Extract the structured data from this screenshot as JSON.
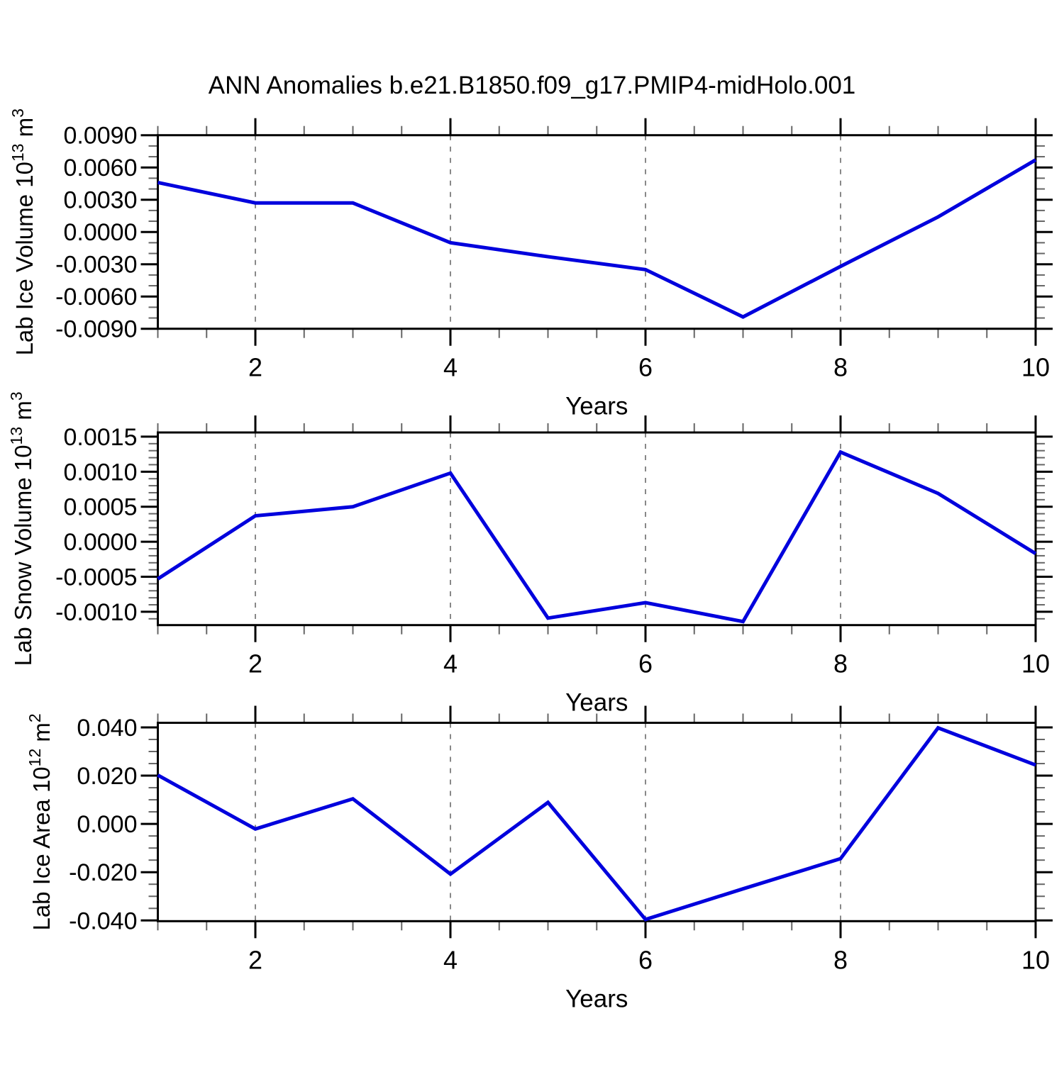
{
  "title": "ANN Anomalies b.e21.B1850.f09_g17.PMIP4-midHolo.001",
  "colors": {
    "line": "#0000dd",
    "grid_dashed": "#888888",
    "axis": "#000000",
    "minor_tick": "#666666",
    "background": "#ffffff"
  },
  "chart_data": [
    {
      "type": "line",
      "name": "lab-ice-volume",
      "ylabel_text": "Lab Ice Volume 10^13 m^3",
      "ylabel_segments": [
        {
          "t": "Lab Ice Volume 10"
        },
        {
          "t": "13",
          "sup": true
        },
        {
          "t": " m"
        },
        {
          "t": "3",
          "sup": true
        }
      ],
      "xlabel": "Years",
      "x": [
        1,
        2,
        3,
        4,
        5,
        6,
        7,
        8,
        9,
        10
      ],
      "values": [
        0.0046,
        0.0027,
        0.0027,
        -0.001,
        -0.0023,
        -0.0035,
        -0.0079,
        -0.0032,
        0.0014,
        0.0067
      ],
      "xlim": [
        1,
        10
      ],
      "ylim": [
        -0.009,
        0.009
      ],
      "yticks_major": [
        0.009,
        0.006,
        0.003,
        0.0,
        -0.003,
        -0.006,
        -0.009
      ],
      "ytick_labels": [
        "0.0090",
        "0.0060",
        "0.0030",
        "0.0000",
        "-0.0030",
        "-0.0060",
        "-0.0090"
      ],
      "ytick_decimals": 4,
      "y_minor_step": 0.001,
      "xticks_major": [
        2,
        4,
        6,
        8,
        10
      ],
      "xtick_labels": [
        "2",
        "4",
        "6",
        "8",
        "10"
      ],
      "x_minor_step": 0.5,
      "grid_x_dashed": [
        2,
        4,
        6,
        8
      ],
      "legend": "none"
    },
    {
      "type": "line",
      "name": "lab-snow-volume",
      "ylabel_text": "Lab Snow Volume 10^13 m^3",
      "ylabel_segments": [
        {
          "t": "Lab Snow Volume 10"
        },
        {
          "t": "13",
          "sup": true
        },
        {
          "t": " m"
        },
        {
          "t": "3",
          "sup": true
        }
      ],
      "xlabel": "Years",
      "x": [
        1,
        2,
        3,
        4,
        5,
        6,
        7,
        8,
        9,
        10
      ],
      "values": [
        -0.00053,
        0.00037,
        0.0005,
        0.00098,
        -0.00109,
        -0.00087,
        -0.00114,
        0.00128,
        0.00069,
        -0.00017
      ],
      "xlim": [
        1,
        10
      ],
      "ylim": [
        -0.00119,
        0.00156
      ],
      "yticks_major": [
        0.0015,
        0.001,
        0.0005,
        0.0,
        -0.0005,
        -0.001
      ],
      "ytick_labels": [
        "0.0015",
        "0.0010",
        "0.0005",
        "0.0000",
        "-0.0005",
        "-0.0010"
      ],
      "ytick_decimals": 4,
      "y_minor_step": 0.0001,
      "xticks_major": [
        2,
        4,
        6,
        8,
        10
      ],
      "xtick_labels": [
        "2",
        "4",
        "6",
        "8",
        "10"
      ],
      "x_minor_step": 0.5,
      "grid_x_dashed": [
        2,
        4,
        6,
        8
      ],
      "legend": "none"
    },
    {
      "type": "line",
      "name": "lab-ice-area",
      "ylabel_text": "Lab Ice Area 10^12 m^2",
      "ylabel_segments": [
        {
          "t": "Lab Ice Area 10"
        },
        {
          "t": "12",
          "sup": true
        },
        {
          "t": " m"
        },
        {
          "t": "2",
          "sup": true
        }
      ],
      "xlabel": "Years",
      "x": [
        1,
        2,
        3,
        4,
        5,
        6,
        7,
        8,
        9,
        10
      ],
      "values": [
        0.0202,
        -0.0021,
        0.0104,
        -0.0208,
        0.0089,
        -0.0396,
        -0.0269,
        -0.0144,
        0.0398,
        0.0244
      ],
      "xlim": [
        1,
        10
      ],
      "ylim": [
        -0.0403,
        0.0419
      ],
      "yticks_major": [
        0.04,
        0.02,
        0.0,
        -0.02,
        -0.04
      ],
      "ytick_labels": [
        "0.040",
        "0.020",
        "0.000",
        "-0.020",
        "-0.040"
      ],
      "ytick_decimals": 3,
      "y_minor_step": 0.005,
      "xticks_major": [
        2,
        4,
        6,
        8,
        10
      ],
      "xtick_labels": [
        "2",
        "4",
        "6",
        "8",
        "10"
      ],
      "x_minor_step": 0.5,
      "grid_x_dashed": [
        2,
        4,
        6,
        8
      ],
      "legend": "none"
    }
  ]
}
